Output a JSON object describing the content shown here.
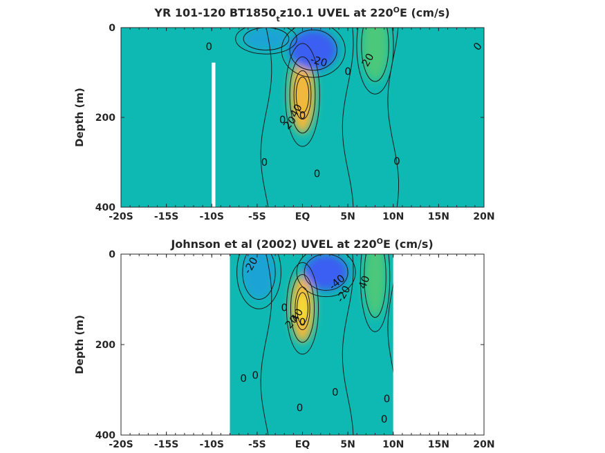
{
  "colors": {
    "background_field": "#0fb9b3",
    "strong_westward": "#3a5ff2",
    "weak_westward": "#1aa3d6",
    "eastward_mid": "#4cc87a",
    "eastward_strong": "#f0b83c",
    "eastward_core": "#f5e030"
  },
  "chart_data": [
    {
      "type": "heatmap",
      "title": "YR 101-120 BT1850",
      "title_subscript": "t",
      "title_suffix": "z10.1 UVEL at 220",
      "title_superscript": "O",
      "title_end": "E (cm/s)",
      "xlabel": "",
      "ylabel": "Depth (m)",
      "xlim": [
        -20,
        20
      ],
      "ylim": [
        0,
        400
      ],
      "y_reversed": true,
      "x_tick_values": [
        -20,
        -15,
        -10,
        -5,
        0,
        5,
        10,
        15,
        20
      ],
      "x_tick_labels": [
        "-20S",
        "-15S",
        "-10S",
        "-5S",
        "EQ",
        "5N",
        "10N",
        "15N",
        "20N"
      ],
      "y_tick_values": [
        0,
        200,
        400
      ],
      "y_tick_labels": [
        "0",
        "200",
        "400"
      ],
      "data_gap": {
        "x": [
          -10,
          -9.6
        ],
        "depth": [
          78,
          400
        ]
      },
      "blobs": [
        {
          "x": 0,
          "depth": 150,
          "rx": 1.4,
          "rdepth": 85,
          "value": 45
        },
        {
          "x": 0,
          "depth": 150,
          "rx": 0.7,
          "rdepth": 40,
          "value": 55
        },
        {
          "x": 1.2,
          "depth": 50,
          "rx": 2.6,
          "rdepth": 45,
          "value": -35
        },
        {
          "x": 8,
          "depth": 40,
          "rx": 1.5,
          "rdepth": 80,
          "value": 20
        },
        {
          "x": -4,
          "depth": 25,
          "rx": 2.5,
          "rdepth": 25,
          "value": -10
        }
      ],
      "contour_labels": [
        {
          "x": -10.3,
          "depth": 42,
          "text": "0",
          "rotate": 0
        },
        {
          "x": 1.8,
          "depth": 75,
          "text": "-20",
          "rotate": 15
        },
        {
          "x": 7.2,
          "depth": 72,
          "text": "20",
          "rotate": -60
        },
        {
          "x": 5,
          "depth": 98,
          "text": "0",
          "rotate": 0
        },
        {
          "x": -0.7,
          "depth": 185,
          "text": "40",
          "rotate": -60
        },
        {
          "x": -2.2,
          "depth": 205,
          "text": "0",
          "rotate": 0
        },
        {
          "x": -1.4,
          "depth": 212,
          "text": "20",
          "rotate": -50
        },
        {
          "x": 0,
          "depth": 195,
          "text": "0",
          "rotate": 0
        },
        {
          "x": -4.2,
          "depth": 300,
          "text": "0",
          "rotate": 0
        },
        {
          "x": 1.6,
          "depth": 325,
          "text": "0",
          "rotate": 0
        },
        {
          "x": 10.4,
          "depth": 298,
          "text": "0",
          "rotate": 0
        },
        {
          "x": 19.3,
          "depth": 42,
          "text": "0",
          "rotate": -50
        }
      ]
    },
    {
      "type": "heatmap",
      "title": "Johnson et al (2002) UVEL at 220",
      "title_superscript": "O",
      "title_end": "E (cm/s)",
      "xlabel": "",
      "ylabel": "Depth (m)",
      "xlim": [
        -20,
        20
      ],
      "ylim": [
        0,
        400
      ],
      "y_reversed": true,
      "x_tick_values": [
        -20,
        -15,
        -10,
        -5,
        0,
        5,
        10,
        15,
        20
      ],
      "x_tick_labels": [
        "-20S",
        "-15S",
        "-10S",
        "-5S",
        "EQ",
        "5N",
        "10N",
        "15N",
        "20N"
      ],
      "y_tick_values": [
        0,
        200,
        400
      ],
      "y_tick_labels": [
        "0",
        "200",
        "400"
      ],
      "data_x_range": [
        -8,
        10
      ],
      "blobs": [
        {
          "x": 0,
          "depth": 120,
          "rx": 1.3,
          "rdepth": 75,
          "value": 60
        },
        {
          "x": 0,
          "depth": 120,
          "rx": 0.6,
          "rdepth": 35,
          "value": 75
        },
        {
          "x": 2.6,
          "depth": 40,
          "rx": 2.4,
          "rdepth": 40,
          "value": -45
        },
        {
          "x": 8,
          "depth": 50,
          "rx": 1.2,
          "rdepth": 90,
          "value": 30
        },
        {
          "x": -4.8,
          "depth": 40,
          "rx": 1.8,
          "rdepth": 60,
          "value": -25
        }
      ],
      "contour_labels": [
        {
          "x": -5.7,
          "depth": 25,
          "text": "-20",
          "rotate": -60
        },
        {
          "x": 3.8,
          "depth": 62,
          "text": "-40",
          "rotate": -40
        },
        {
          "x": 4.5,
          "depth": 88,
          "text": "-20",
          "rotate": -60
        },
        {
          "x": 6.8,
          "depth": 62,
          "text": "40",
          "rotate": -70
        },
        {
          "x": -2,
          "depth": 118,
          "text": "0",
          "rotate": 0
        },
        {
          "x": -0.6,
          "depth": 135,
          "text": "40",
          "rotate": -60
        },
        {
          "x": -1.2,
          "depth": 150,
          "text": "20",
          "rotate": -50
        },
        {
          "x": 0,
          "depth": 150,
          "text": "0",
          "rotate": 0
        },
        {
          "x": -6.5,
          "depth": 275,
          "text": "0",
          "rotate": 0
        },
        {
          "x": -5.2,
          "depth": 268,
          "text": "0",
          "rotate": 0
        },
        {
          "x": 3.6,
          "depth": 305,
          "text": "0",
          "rotate": 0
        },
        {
          "x": -0.3,
          "depth": 340,
          "text": "0",
          "rotate": 0
        },
        {
          "x": 9.3,
          "depth": 320,
          "text": "0",
          "rotate": 0
        },
        {
          "x": 9,
          "depth": 365,
          "text": "0",
          "rotate": 0
        }
      ]
    }
  ]
}
